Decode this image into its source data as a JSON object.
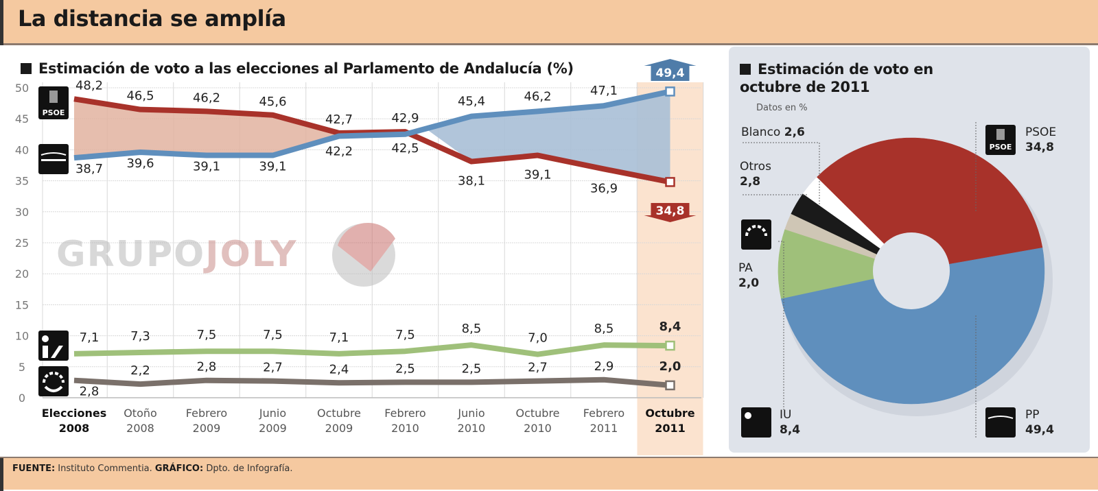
{
  "header": {
    "title": "La distancia se amplía"
  },
  "left_title": "Estimación de voto a las elecciones al Parlamento de Andalucía (%)",
  "right_title_line1": "Estimación de voto en",
  "right_title_line2": "octubre de 2011",
  "right_subtitle": "Datos en %",
  "watermark": {
    "part1": "GRUPO",
    "part2": "JOLY"
  },
  "footer": {
    "source_label": "FUENTE:",
    "source_text": "Instituto Commentia.",
    "graphic_label": "GRÁFICO:",
    "graphic_text": "Dpto. de Infografía."
  },
  "colors": {
    "psoe": "#a8322a",
    "pp": "#5f8fbd",
    "iu": "#9fc07a",
    "pa": "#7a706a",
    "otros": "#1a1a1a",
    "blanco": "#ffffff",
    "pa_pie": "#cfc6b5",
    "highlight": "#fbe3cf"
  },
  "logos": {
    "psoe": "PSOE",
    "pp": "PP",
    "iu": "IU",
    "pa": "PA"
  },
  "chart_data": [
    {
      "type": "line",
      "title": "Estimación de voto a las elecciones al Parlamento de Andalucía (%)",
      "categories": [
        [
          "Elecciones",
          "2008"
        ],
        [
          "Otoño",
          "2008"
        ],
        [
          "Febrero",
          "2009"
        ],
        [
          "Junio",
          "2009"
        ],
        [
          "Octubre",
          "2009"
        ],
        [
          "Febrero",
          "2010"
        ],
        [
          "Junio",
          "2010"
        ],
        [
          "Octubre",
          "2010"
        ],
        [
          "Febrero",
          "2011"
        ],
        [
          "Octubre",
          "2011"
        ]
      ],
      "yticks": [
        "0",
        "5",
        "10",
        "15",
        "20",
        "25",
        "30",
        "35",
        "40",
        "45",
        "50"
      ],
      "ylim": [
        0,
        50
      ],
      "grid": true,
      "series": [
        {
          "name": "PSOE",
          "values": [
            48.2,
            46.5,
            46.2,
            45.6,
            42.7,
            42.9,
            38.1,
            39.1,
            36.9,
            34.8
          ],
          "labels": [
            "48,2",
            "46,5",
            "46,2",
            "45,6",
            "42,7",
            "42,9",
            "38,1",
            "39,1",
            "36,9",
            "34,8"
          ]
        },
        {
          "name": "PP",
          "values": [
            38.7,
            39.6,
            39.1,
            39.1,
            42.2,
            42.5,
            45.4,
            46.2,
            47.1,
            49.4
          ],
          "labels": [
            "38,7",
            "39,6",
            "39,1",
            "39,1",
            "42,2",
            "42,5",
            "45,4",
            "46,2",
            "47,1",
            "49,4"
          ]
        },
        {
          "name": "IU",
          "values": [
            7.1,
            7.3,
            7.5,
            7.5,
            7.1,
            7.5,
            8.5,
            7.0,
            8.5,
            8.4
          ],
          "labels": [
            "7,1",
            "7,3",
            "7,5",
            "7,5",
            "7,1",
            "7,5",
            "8,5",
            "7,0",
            "8,5",
            "8,4"
          ]
        },
        {
          "name": "PA",
          "values": [
            2.8,
            2.2,
            2.8,
            2.7,
            2.4,
            2.5,
            2.5,
            2.7,
            2.9,
            2.0
          ],
          "labels": [
            "2,8",
            "2,2",
            "2,8",
            "2,7",
            "2,4",
            "2,5",
            "2,5",
            "2,7",
            "2,9",
            "2,0"
          ]
        }
      ]
    },
    {
      "type": "pie",
      "title": "Estimación de voto en octubre de 2011",
      "subtitle": "Datos en %",
      "slices": [
        {
          "name": "PSOE",
          "value": 34.8,
          "label": "34,8"
        },
        {
          "name": "Blanco",
          "value": 2.6,
          "label": "2,6"
        },
        {
          "name": "Otros",
          "value": 2.8,
          "label": "2,8"
        },
        {
          "name": "PA",
          "value": 2.0,
          "label": "2,0"
        },
        {
          "name": "IU",
          "value": 8.4,
          "label": "8,4"
        },
        {
          "name": "PP",
          "value": 49.4,
          "label": "49,4"
        }
      ]
    }
  ]
}
